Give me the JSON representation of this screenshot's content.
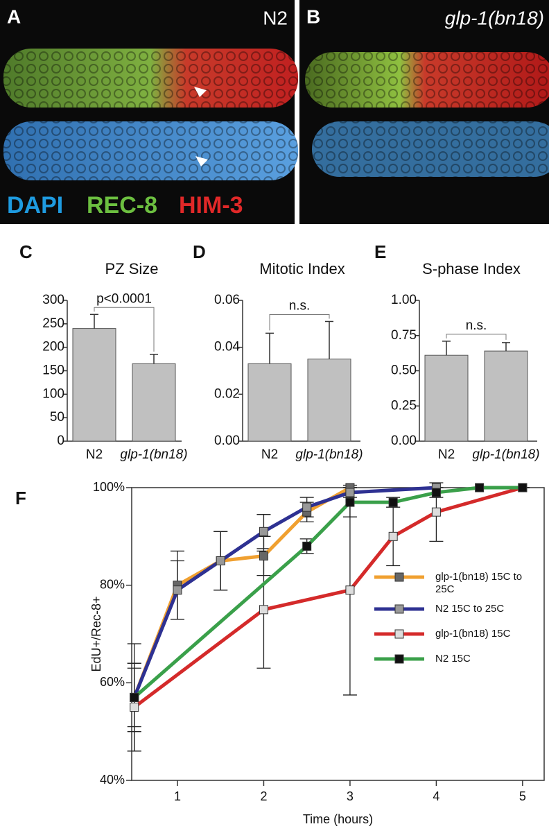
{
  "panels": [
    {
      "label": "A",
      "strain": "N2",
      "stains": [
        "DAPI",
        "REC-8",
        "HIM-3"
      ]
    },
    {
      "label": "B",
      "strain": "glp-1(bn18)"
    }
  ],
  "chart_data": [
    {
      "type": "bar",
      "label": "C",
      "title": "PZ Size",
      "annotation": "p<0.0001",
      "categories": [
        "N2",
        "glp-1(bn18)"
      ],
      "values": [
        240,
        165
      ],
      "errors": [
        30,
        20
      ],
      "ylim": [
        0,
        300
      ],
      "yticks": [
        0,
        50,
        100,
        150,
        200,
        250,
        300
      ],
      "color": "#c0c0c0"
    },
    {
      "type": "bar",
      "label": "D",
      "title": "Mitotic Index",
      "annotation": "n.s.",
      "categories": [
        "N2",
        "glp-1(bn18)"
      ],
      "values": [
        0.033,
        0.035
      ],
      "errors": [
        0.013,
        0.016
      ],
      "ylim": [
        0,
        0.06
      ],
      "yticks": [
        {
          "value": 0,
          "label": "0.00"
        },
        {
          "value": 0.02,
          "label": "0.02"
        },
        {
          "value": 0.04,
          "label": "0.04"
        },
        {
          "value": 0.06,
          "label": "0.06"
        }
      ],
      "color": "#c0c0c0"
    },
    {
      "type": "bar",
      "label": "E",
      "title": "S-phase Index",
      "annotation": "n.s.",
      "categories": [
        "N2",
        "glp-1(bn18)"
      ],
      "values": [
        0.61,
        0.64
      ],
      "errors": [
        0.1,
        0.06
      ],
      "ylim": [
        0,
        1
      ],
      "yticks": [
        {
          "value": 0,
          "label": "0.00"
        },
        {
          "value": 0.25,
          "label": "0.25"
        },
        {
          "value": 0.5,
          "label": "0.50"
        },
        {
          "value": 0.75,
          "label": "0.75"
        },
        {
          "value": 1,
          "label": "1.00"
        }
      ],
      "color": "#c0c0c0"
    },
    {
      "type": "line",
      "label": "F",
      "x_label": "Time (hours)",
      "y_label": "EdU+/Rec-8+",
      "xlim": [
        0.47,
        5.25
      ],
      "xticks": [
        1,
        2,
        3,
        4,
        5
      ],
      "ylim": [
        40,
        100
      ],
      "yticks": [
        {
          "value": 40,
          "label": "40%"
        },
        {
          "value": 60,
          "label": "60%"
        },
        {
          "value": 80,
          "label": "80%"
        },
        {
          "value": 100,
          "label": "100%"
        }
      ],
      "series": [
        {
          "name": "glp-1(bn18) 15C to 25C",
          "color": "#f0a030",
          "marker_color": "#666666",
          "x": [
            0.5,
            1,
            1.5,
            2,
            2.5,
            3
          ],
          "values": [
            57,
            80,
            85,
            86,
            95,
            100
          ],
          "errors": [
            7,
            7,
            6,
            4,
            2,
            0
          ]
        },
        {
          "name": "N2 15C to 25C",
          "color": "#2e3192",
          "marker_color": "#999999",
          "x": [
            0.5,
            1,
            1.5,
            2,
            2.5,
            3,
            4
          ],
          "values": [
            57,
            79,
            85,
            91,
            96,
            99,
            100
          ],
          "errors": [
            6,
            6,
            6,
            3.5,
            2,
            1,
            0
          ]
        },
        {
          "name": "glp-1(bn18) 15C",
          "color": "#d42a2a",
          "marker_color": "#dddddd",
          "x": [
            0.5,
            2,
            3,
            3.5,
            4,
            5
          ],
          "values": [
            55,
            75,
            79,
            90,
            95,
            100
          ],
          "errors": [
            9,
            12,
            21.5,
            6,
            6,
            0
          ]
        },
        {
          "name": "N2 15C",
          "color": "#3aa04a",
          "marker_color": "#111111",
          "x": [
            0.5,
            2.5,
            3,
            3.5,
            4,
            4.5,
            5
          ],
          "values": [
            57,
            88,
            97,
            97,
            99,
            100,
            100
          ],
          "errors": [
            11,
            1.5,
            3,
            1,
            1,
            0,
            0
          ]
        }
      ]
    }
  ]
}
